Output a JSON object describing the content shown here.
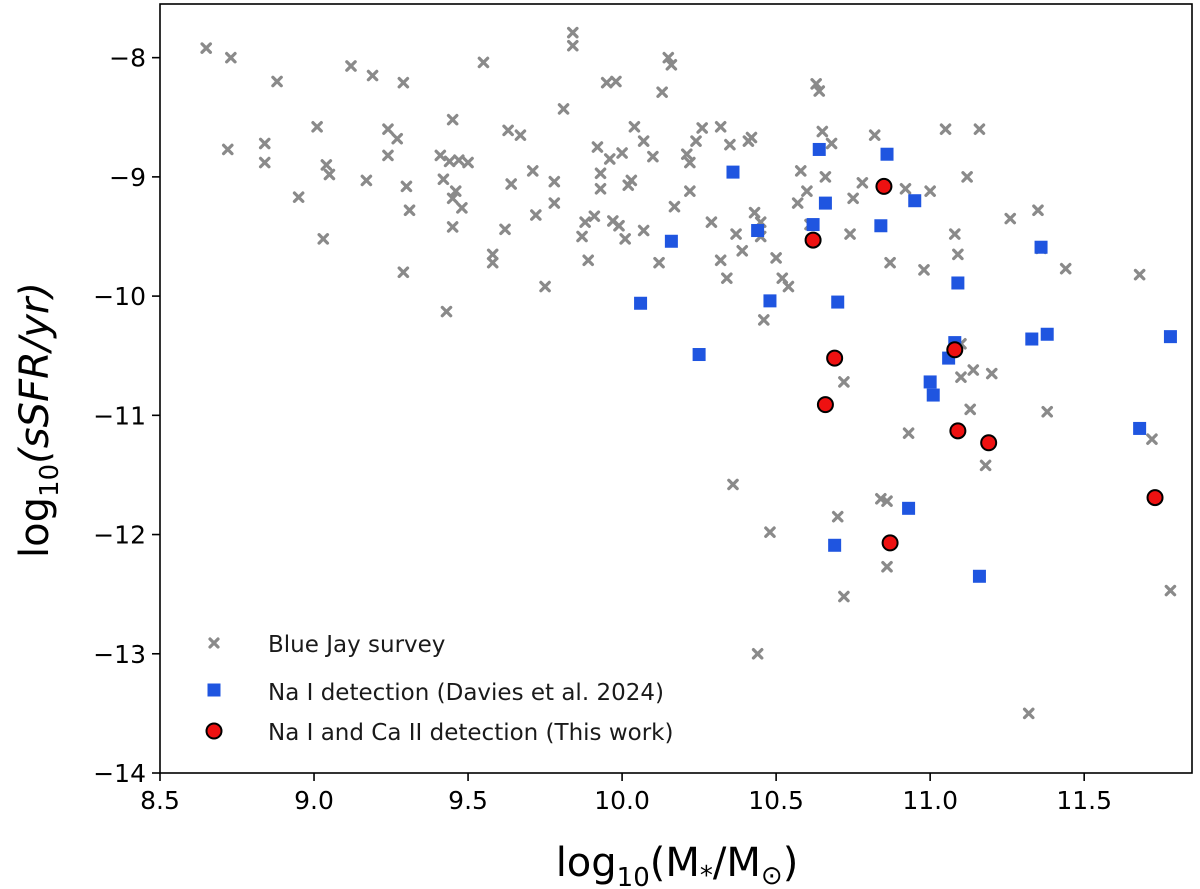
{
  "chart_data": {
    "type": "scatter",
    "xlabel": "log10(M*/M⊙)",
    "ylabel": "log10(sSFR/yr)",
    "xlabel_parts": {
      "base": "log",
      "sub": "10",
      "arg": "(M",
      "star": "*",
      "div": "/M",
      "sun": "⊙",
      "close": ")"
    },
    "ylabel_parts": {
      "base": "log",
      "sub": "10",
      "arg": "(sSFR/yr)"
    },
    "xlim": [
      8.5,
      11.85
    ],
    "ylim": [
      -14,
      -7.55
    ],
    "xticks": [
      8.5,
      9.0,
      9.5,
      10.0,
      10.5,
      11.0,
      11.5
    ],
    "xtick_labels": [
      "8.5",
      "9.0",
      "9.5",
      "10.0",
      "10.5",
      "11.0",
      "11.5"
    ],
    "yticks": [
      -14,
      -13,
      -12,
      -11,
      -10,
      -9,
      -8
    ],
    "ytick_labels": [
      "−14",
      "−13",
      "−12",
      "−11",
      "−10",
      "−9",
      "−8"
    ],
    "legend_position": "lower-left",
    "series": [
      {
        "name": "Blue Jay survey",
        "marker": "x",
        "color": "#8a8a8a",
        "points": [
          [
            8.65,
            -7.92
          ],
          [
            8.73,
            -8.0
          ],
          [
            8.72,
            -8.77
          ],
          [
            8.84,
            -8.72
          ],
          [
            8.84,
            -8.88
          ],
          [
            8.88,
            -8.2
          ],
          [
            8.95,
            -9.17
          ],
          [
            9.01,
            -8.58
          ],
          [
            9.03,
            -9.52
          ],
          [
            9.04,
            -8.9
          ],
          [
            9.05,
            -8.98
          ],
          [
            9.12,
            -8.07
          ],
          [
            9.17,
            -9.03
          ],
          [
            9.19,
            -8.15
          ],
          [
            9.24,
            -8.6
          ],
          [
            9.24,
            -8.82
          ],
          [
            9.27,
            -8.68
          ],
          [
            9.29,
            -8.21
          ],
          [
            9.29,
            -9.8
          ],
          [
            9.3,
            -9.08
          ],
          [
            9.31,
            -9.28
          ],
          [
            9.41,
            -8.82
          ],
          [
            9.42,
            -9.02
          ],
          [
            9.43,
            -10.13
          ],
          [
            9.44,
            -8.87
          ],
          [
            9.45,
            -9.18
          ],
          [
            9.45,
            -9.42
          ],
          [
            9.45,
            -8.52
          ],
          [
            9.46,
            -9.12
          ],
          [
            9.47,
            -8.86
          ],
          [
            9.48,
            -9.26
          ],
          [
            9.5,
            -8.88
          ],
          [
            9.55,
            -8.04
          ],
          [
            9.58,
            -9.65
          ],
          [
            9.58,
            -9.72
          ],
          [
            9.62,
            -9.44
          ],
          [
            9.63,
            -8.61
          ],
          [
            9.64,
            -9.06
          ],
          [
            9.67,
            -8.65
          ],
          [
            9.71,
            -8.95
          ],
          [
            9.72,
            -9.32
          ],
          [
            9.75,
            -9.92
          ],
          [
            9.78,
            -9.04
          ],
          [
            9.78,
            -9.22
          ],
          [
            9.81,
            -8.43
          ],
          [
            9.84,
            -7.79
          ],
          [
            9.84,
            -7.9
          ],
          [
            9.87,
            -9.5
          ],
          [
            9.88,
            -9.38
          ],
          [
            9.89,
            -9.7
          ],
          [
            9.91,
            -9.33
          ],
          [
            9.92,
            -8.75
          ],
          [
            9.93,
            -9.1
          ],
          [
            9.93,
            -8.97
          ],
          [
            9.95,
            -8.21
          ],
          [
            9.96,
            -8.85
          ],
          [
            9.97,
            -9.37
          ],
          [
            9.98,
            -8.2
          ],
          [
            9.99,
            -9.41
          ],
          [
            10.0,
            -8.8
          ],
          [
            10.01,
            -9.52
          ],
          [
            10.02,
            -9.07
          ],
          [
            10.03,
            -9.03
          ],
          [
            10.04,
            -8.58
          ],
          [
            10.07,
            -8.7
          ],
          [
            10.07,
            -9.45
          ],
          [
            10.1,
            -8.83
          ],
          [
            10.12,
            -9.72
          ],
          [
            10.13,
            -8.29
          ],
          [
            10.15,
            -8.0
          ],
          [
            10.16,
            -8.06
          ],
          [
            10.17,
            -9.25
          ],
          [
            10.21,
            -8.81
          ],
          [
            10.22,
            -8.88
          ],
          [
            10.22,
            -9.12
          ],
          [
            10.24,
            -8.7
          ],
          [
            10.26,
            -8.59
          ],
          [
            10.29,
            -9.38
          ],
          [
            10.32,
            -8.58
          ],
          [
            10.32,
            -9.7
          ],
          [
            10.34,
            -9.85
          ],
          [
            10.35,
            -8.73
          ],
          [
            10.36,
            -11.58
          ],
          [
            10.37,
            -9.48
          ],
          [
            10.39,
            -9.62
          ],
          [
            10.41,
            -8.7
          ],
          [
            10.42,
            -8.67
          ],
          [
            10.43,
            -9.3
          ],
          [
            10.44,
            -13.0
          ],
          [
            10.45,
            -9.38
          ],
          [
            10.45,
            -9.5
          ],
          [
            10.46,
            -10.2
          ],
          [
            10.48,
            -11.98
          ],
          [
            10.5,
            -9.68
          ],
          [
            10.52,
            -9.85
          ],
          [
            10.54,
            -9.92
          ],
          [
            10.57,
            -9.22
          ],
          [
            10.58,
            -8.95
          ],
          [
            10.6,
            -9.12
          ],
          [
            10.61,
            -9.4
          ],
          [
            10.63,
            -8.22
          ],
          [
            10.64,
            -8.28
          ],
          [
            10.65,
            -8.62
          ],
          [
            10.66,
            -9.0
          ],
          [
            10.68,
            -8.72
          ],
          [
            10.7,
            -11.85
          ],
          [
            10.72,
            -10.72
          ],
          [
            10.72,
            -12.52
          ],
          [
            10.74,
            -9.48
          ],
          [
            10.75,
            -9.18
          ],
          [
            10.78,
            -9.05
          ],
          [
            10.82,
            -8.65
          ],
          [
            10.84,
            -11.7
          ],
          [
            10.86,
            -11.72
          ],
          [
            10.86,
            -12.27
          ],
          [
            10.87,
            -9.72
          ],
          [
            10.92,
            -9.1
          ],
          [
            10.93,
            -11.15
          ],
          [
            10.98,
            -9.78
          ],
          [
            11.0,
            -9.12
          ],
          [
            11.05,
            -8.6
          ],
          [
            11.08,
            -9.48
          ],
          [
            11.09,
            -9.65
          ],
          [
            11.1,
            -10.4
          ],
          [
            11.1,
            -10.68
          ],
          [
            11.12,
            -9.0
          ],
          [
            11.13,
            -10.95
          ],
          [
            11.14,
            -10.62
          ],
          [
            11.16,
            -8.6
          ],
          [
            11.18,
            -11.42
          ],
          [
            11.2,
            -10.65
          ],
          [
            11.26,
            -9.35
          ],
          [
            11.32,
            -13.5
          ],
          [
            11.35,
            -9.28
          ],
          [
            11.36,
            -9.6
          ],
          [
            11.38,
            -10.97
          ],
          [
            11.44,
            -9.77
          ],
          [
            11.68,
            -9.82
          ],
          [
            11.72,
            -11.2
          ],
          [
            11.78,
            -12.47
          ]
        ]
      },
      {
        "name": "Na I detection (Davies et al. 2024)",
        "marker": "s",
        "color": "#1f55e0",
        "points": [
          [
            10.06,
            -10.06
          ],
          [
            10.16,
            -9.54
          ],
          [
            10.25,
            -10.49
          ],
          [
            10.36,
            -8.96
          ],
          [
            10.44,
            -9.45
          ],
          [
            10.48,
            -10.04
          ],
          [
            10.62,
            -9.4
          ],
          [
            10.64,
            -8.77
          ],
          [
            10.66,
            -9.22
          ],
          [
            10.69,
            -12.09
          ],
          [
            10.7,
            -10.05
          ],
          [
            10.84,
            -9.41
          ],
          [
            10.86,
            -8.81
          ],
          [
            10.93,
            -11.78
          ],
          [
            10.95,
            -9.2
          ],
          [
            11.0,
            -10.72
          ],
          [
            11.01,
            -10.83
          ],
          [
            11.06,
            -10.52
          ],
          [
            11.08,
            -10.39
          ],
          [
            11.09,
            -9.89
          ],
          [
            11.16,
            -12.35
          ],
          [
            11.33,
            -10.36
          ],
          [
            11.36,
            -9.59
          ],
          [
            11.38,
            -10.32
          ],
          [
            11.68,
            -11.11
          ],
          [
            11.78,
            -10.34
          ]
        ]
      },
      {
        "name": "Na I and Ca II detection (This work)",
        "marker": "o",
        "color": "#ee1111",
        "points": [
          [
            10.62,
            -9.53
          ],
          [
            10.66,
            -10.91
          ],
          [
            10.69,
            -10.52
          ],
          [
            10.85,
            -9.08
          ],
          [
            10.87,
            -12.07
          ],
          [
            11.08,
            -10.45
          ],
          [
            11.09,
            -11.13
          ],
          [
            11.19,
            -11.23
          ],
          [
            11.73,
            -11.69
          ]
        ]
      }
    ]
  }
}
